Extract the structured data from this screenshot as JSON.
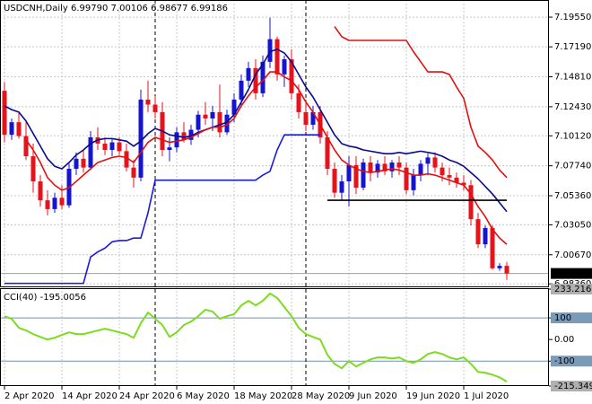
{
  "chart_data": [
    {
      "type": "candlestick",
      "title": "USDCNH,Daily  6.99790 7.00106 6.98677 6.99186",
      "categories": [
        "2 Apr 2020",
        null,
        null,
        null,
        null,
        null,
        null,
        null,
        "14 Apr 2020",
        null,
        null,
        null,
        null,
        null,
        null,
        null,
        "24 Apr 2020",
        null,
        null,
        null,
        null,
        null,
        null,
        null,
        "6 May 2020",
        null,
        null,
        null,
        null,
        null,
        null,
        null,
        "18 May 2020",
        null,
        null,
        null,
        null,
        null,
        null,
        null,
        "28 May 2020",
        null,
        null,
        null,
        null,
        null,
        null,
        null,
        "9 Jun 2020",
        null,
        null,
        null,
        null,
        null,
        null,
        null,
        "19 Jun 2020",
        null,
        null,
        null,
        null,
        null,
        null,
        null,
        "1 Jul 2020",
        null,
        null,
        null,
        null,
        null,
        null
      ],
      "open": [
        7.137,
        7.102,
        7.112,
        7.101,
        7.085,
        7.065,
        7.05,
        7.043,
        7.052,
        7.046,
        7.075,
        7.083,
        7.076,
        7.1,
        7.095,
        7.09,
        7.096,
        7.089,
        7.076,
        7.068,
        7.13,
        7.126,
        7.12,
        7.09,
        7.092,
        7.104,
        7.098,
        7.106,
        7.118,
        7.115,
        7.12,
        7.104,
        7.118,
        7.13,
        7.145,
        7.155,
        7.135,
        7.16,
        7.178,
        7.15,
        7.162,
        7.135,
        7.12,
        7.11,
        7.12,
        7.1,
        7.075,
        7.056,
        7.065,
        7.078,
        7.06,
        7.08,
        7.072,
        7.079,
        7.073,
        7.08,
        7.076,
        7.058,
        7.07,
        7.079,
        7.084,
        7.076,
        7.07,
        7.068,
        7.064,
        7.062,
        7.035,
        7.015,
        7.028,
        6.996,
        6.9979
      ],
      "high": [
        7.144,
        7.115,
        7.12,
        7.112,
        7.095,
        7.07,
        7.058,
        7.056,
        7.062,
        7.079,
        7.088,
        7.09,
        7.105,
        7.108,
        7.1,
        7.099,
        7.1,
        7.095,
        7.082,
        7.138,
        7.145,
        7.133,
        7.128,
        7.1,
        7.108,
        7.112,
        7.11,
        7.121,
        7.128,
        7.125,
        7.142,
        7.122,
        7.135,
        7.15,
        7.16,
        7.162,
        7.165,
        7.195,
        7.18,
        7.165,
        7.17,
        7.142,
        7.13,
        7.125,
        7.125,
        7.105,
        7.08,
        7.07,
        7.085,
        7.085,
        7.083,
        7.085,
        7.082,
        7.085,
        7.082,
        7.085,
        7.08,
        7.075,
        7.082,
        7.087,
        7.088,
        7.08,
        7.076,
        7.072,
        7.07,
        7.066,
        7.04,
        7.03,
        7.03,
        7.0,
        7.00106
      ],
      "low": [
        7.096,
        7.098,
        7.099,
        7.082,
        7.056,
        7.045,
        7.038,
        7.04,
        7.043,
        7.044,
        7.07,
        7.072,
        7.074,
        7.09,
        7.086,
        7.085,
        7.086,
        7.073,
        7.06,
        7.065,
        7.12,
        7.115,
        7.085,
        7.081,
        7.088,
        7.096,
        7.094,
        7.1,
        7.11,
        7.105,
        7.1,
        7.102,
        7.112,
        7.125,
        7.14,
        7.13,
        7.132,
        7.155,
        7.145,
        7.14,
        7.13,
        7.115,
        7.105,
        7.106,
        7.095,
        7.07,
        7.052,
        7.05,
        7.045,
        7.055,
        7.058,
        7.065,
        7.068,
        7.07,
        7.068,
        7.07,
        7.055,
        7.054,
        7.065,
        7.07,
        7.072,
        7.065,
        7.062,
        7.06,
        7.058,
        7.03,
        7.012,
        7.012,
        6.995,
        6.994,
        6.98677
      ],
      "close": [
        7.102,
        7.112,
        7.101,
        7.085,
        7.065,
        7.05,
        7.043,
        7.052,
        7.046,
        7.075,
        7.083,
        7.076,
        7.1,
        7.095,
        7.09,
        7.096,
        7.089,
        7.076,
        7.068,
        7.13,
        7.126,
        7.12,
        7.09,
        7.092,
        7.104,
        7.098,
        7.106,
        7.118,
        7.115,
        7.12,
        7.104,
        7.118,
        7.13,
        7.145,
        7.155,
        7.135,
        7.16,
        7.178,
        7.15,
        7.162,
        7.135,
        7.12,
        7.11,
        7.12,
        7.1,
        7.075,
        7.056,
        7.065,
        7.078,
        7.06,
        7.08,
        7.072,
        7.079,
        7.073,
        7.08,
        7.076,
        7.058,
        7.07,
        7.079,
        7.084,
        7.076,
        7.07,
        7.068,
        7.064,
        7.062,
        7.035,
        7.015,
        7.028,
        6.996,
        6.9979,
        6.99186
      ],
      "up_color": "#1414d2",
      "down_color": "#e8121a",
      "overlays": [
        {
          "color": "#0a0a8c",
          "values": [
            7.125,
            7.122,
            7.12,
            7.113,
            7.103,
            7.093,
            7.083,
            7.077,
            7.075,
            7.08,
            7.086,
            7.09,
            7.095,
            7.098,
            7.099,
            7.099,
            7.098,
            7.097,
            7.093,
            7.097,
            7.103,
            7.107,
            7.105,
            7.102,
            7.101,
            7.1,
            7.101,
            7.104,
            7.106,
            7.108,
            7.11,
            7.112,
            7.118,
            7.128,
            7.138,
            7.15,
            7.158,
            7.168,
            7.17,
            7.167,
            7.16,
            7.15,
            7.14,
            7.132,
            7.122,
            7.112,
            7.102,
            7.095,
            7.093,
            7.092,
            7.09,
            7.089,
            7.088,
            7.087,
            7.087,
            7.088,
            7.087,
            7.088,
            7.089,
            7.088,
            7.087,
            7.085,
            7.082,
            7.08,
            7.077,
            7.072,
            7.067,
            7.061,
            7.055,
            7.048,
            7.041
          ]
        },
        {
          "color": "#e01010",
          "values": [
            null,
            null,
            null,
            7.098,
            7.09,
            7.08,
            7.068,
            7.062,
            7.058,
            7.06,
            7.065,
            7.07,
            7.075,
            7.08,
            7.082,
            7.084,
            7.085,
            7.084,
            7.08,
            7.088,
            7.096,
            7.1,
            7.098,
            7.096,
            7.097,
            7.098,
            7.1,
            7.103,
            7.106,
            7.108,
            7.108,
            7.11,
            7.115,
            7.125,
            7.133,
            7.14,
            7.145,
            7.152,
            7.152,
            7.148,
            7.145,
            7.138,
            7.128,
            7.12,
            7.11,
            7.1,
            7.09,
            7.082,
            7.078,
            7.075,
            7.073,
            7.072,
            7.073,
            7.074,
            7.075,
            7.074,
            7.072,
            7.07,
            7.07,
            7.071,
            7.07,
            7.068,
            7.066,
            7.064,
            7.062,
            7.055,
            7.045,
            7.037,
            7.027,
            7.02,
            7.015
          ]
        },
        {
          "color": "#1a1ae0",
          "values": [
            6.984,
            6.984,
            6.984,
            6.984,
            6.984,
            6.984,
            6.984,
            6.984,
            6.984,
            6.984,
            6.984,
            6.984,
            7.005,
            7.009,
            7.012,
            7.017,
            7.018,
            7.018,
            7.02,
            7.02,
            7.04,
            7.066,
            7.066,
            7.066,
            7.066,
            7.066,
            7.066,
            7.066,
            7.066,
            7.066,
            7.066,
            7.066,
            7.066,
            7.066,
            7.066,
            7.066,
            7.07,
            7.073,
            7.09,
            7.102,
            7.102,
            7.102,
            7.102,
            7.102,
            7.102,
            null,
            null,
            null,
            null,
            null,
            null,
            null,
            null,
            null,
            null,
            null,
            null,
            null,
            null,
            null,
            null,
            null,
            null,
            null,
            null,
            null,
            null,
            null,
            null,
            null,
            null
          ]
        },
        {
          "color": "#e01010",
          "values": [
            null,
            null,
            null,
            null,
            null,
            null,
            null,
            null,
            null,
            null,
            null,
            null,
            null,
            null,
            null,
            null,
            null,
            null,
            null,
            null,
            null,
            null,
            null,
            null,
            null,
            null,
            null,
            null,
            null,
            null,
            null,
            null,
            null,
            null,
            null,
            null,
            null,
            null,
            null,
            null,
            null,
            null,
            null,
            null,
            null,
            null,
            7.188,
            7.18,
            7.177,
            7.177,
            7.177,
            7.177,
            7.177,
            7.177,
            7.177,
            7.177,
            7.177,
            7.168,
            7.16,
            7.152,
            7.152,
            7.152,
            7.15,
            7.14,
            7.131,
            7.108,
            7.093,
            7.088,
            7.082,
            7.074,
            7.068
          ]
        },
        {
          "color": "#000000",
          "values": [
            null,
            null,
            null,
            null,
            null,
            null,
            null,
            null,
            null,
            null,
            null,
            null,
            null,
            null,
            null,
            null,
            null,
            null,
            null,
            null,
            null,
            null,
            null,
            null,
            null,
            null,
            null,
            null,
            null,
            null,
            null,
            null,
            null,
            null,
            null,
            null,
            null,
            null,
            null,
            null,
            null,
            null,
            null,
            null,
            null,
            7.05,
            7.05,
            7.05,
            7.05,
            7.05,
            7.05,
            7.05,
            7.05,
            7.05,
            7.05,
            7.05,
            7.05,
            7.05,
            7.05,
            7.05,
            7.05,
            7.05,
            7.05,
            7.05,
            7.05,
            7.05,
            7.05,
            7.05,
            7.05,
            7.05,
            7.05
          ]
        }
      ],
      "current_price": 6.99186,
      "ylim": [
        6.9823,
        7.2091
      ],
      "yticks": [
        {
          "value": 7.1955,
          "label": "7.19550"
        },
        {
          "value": 7.1719,
          "label": "7.17190"
        },
        {
          "value": 7.1481,
          "label": "7.14810"
        },
        {
          "value": 7.1243,
          "label": "7.12430"
        },
        {
          "value": 7.1012,
          "label": "7.10120"
        },
        {
          "value": 7.0774,
          "label": "7.07740"
        },
        {
          "value": 7.0536,
          "label": "7.05360"
        },
        {
          "value": 7.0305,
          "label": "7.03050"
        },
        {
          "value": 7.0067,
          "label": "7.00670"
        },
        {
          "value": 6.9836,
          "label": "6.98360"
        }
      ],
      "grid": true
    },
    {
      "type": "line",
      "title": "CCI(40) -195.0056",
      "color": "#7ddc1f",
      "values": [
        108,
        96,
        54,
        42,
        25,
        12,
        0,
        8,
        21,
        33,
        25,
        25,
        33,
        42,
        50,
        42,
        33,
        25,
        8,
        75,
        125,
        96,
        67,
        12,
        33,
        67,
        83,
        108,
        138,
        129,
        96,
        108,
        117,
        158,
        179,
        158,
        179,
        213,
        192,
        150,
        108,
        54,
        25,
        12,
        0,
        -71,
        -113,
        -133,
        -100,
        -125,
        -108,
        -92,
        -83,
        -83,
        -88,
        -83,
        -100,
        -108,
        -92,
        -67,
        -58,
        -67,
        -83,
        -92,
        -83,
        -113,
        -150,
        -154,
        -163,
        -175,
        -195.0056
      ],
      "ylim": [
        -215.3495,
        233.216
      ],
      "yticks": [
        233.216,
        100,
        {
          "value": 0,
          "label": "0.00"
        },
        -100,
        -215.3495
      ],
      "levels": [
        100,
        -100
      ]
    }
  ]
}
